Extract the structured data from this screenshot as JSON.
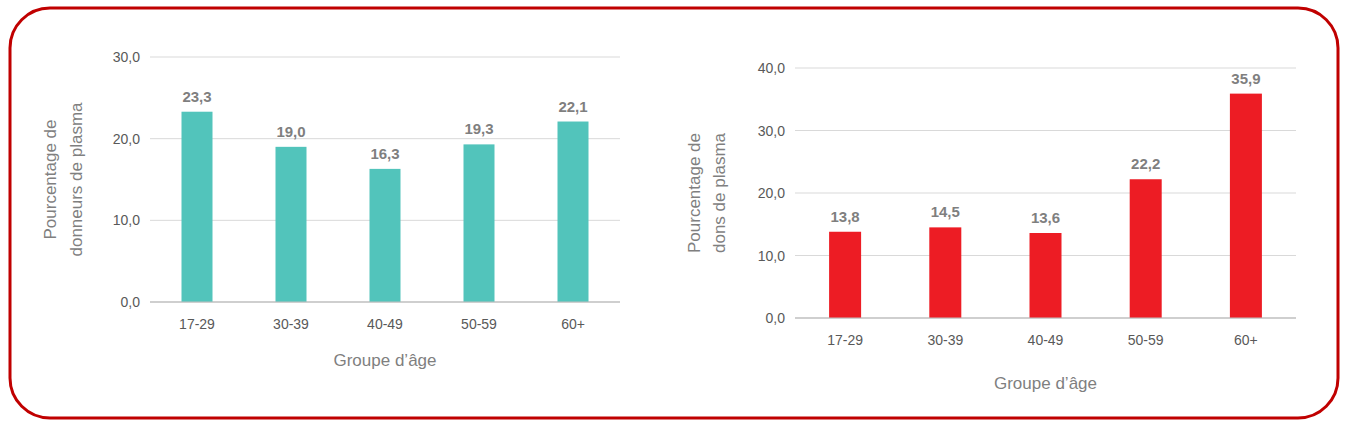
{
  "chart_data": [
    {
      "type": "bar",
      "categories": [
        "17-29",
        "30-39",
        "40-49",
        "50-59",
        "60+"
      ],
      "values": [
        23.3,
        19.0,
        16.3,
        19.3,
        22.1
      ],
      "value_labels": [
        "23,3",
        "19,0",
        "16,3",
        "19,3",
        "22,1"
      ],
      "color": "#52c4bb",
      "xlabel": "Groupe d’âge",
      "ylabel": [
        "Pourcentage de",
        "donneurs de plasma"
      ],
      "ylim": [
        0,
        30
      ],
      "yticks": [
        {
          "value": 0,
          "label": "0,0"
        },
        {
          "value": 10,
          "label": "10,0"
        },
        {
          "value": 20,
          "label": "20,0"
        },
        {
          "value": 30,
          "label": "30,0"
        }
      ],
      "grid": true,
      "data_labels": true
    },
    {
      "type": "bar",
      "categories": [
        "17-29",
        "30-39",
        "40-49",
        "50-59",
        "60+"
      ],
      "values": [
        13.8,
        14.5,
        13.6,
        22.2,
        35.9
      ],
      "value_labels": [
        "13,8",
        "14,5",
        "13,6",
        "22,2",
        "35,9"
      ],
      "color": "#ed1c24",
      "xlabel": "Groupe d’âge",
      "ylabel": [
        "Pourcentage de",
        "dons de plasma"
      ],
      "ylim": [
        0,
        40
      ],
      "yticks": [
        {
          "value": 0,
          "label": "0,0"
        },
        {
          "value": 10,
          "label": "10,0"
        },
        {
          "value": 20,
          "label": "20,0"
        },
        {
          "value": 30,
          "label": "30,0"
        },
        {
          "value": 40,
          "label": "40,0"
        }
      ],
      "grid": true,
      "data_labels": true
    }
  ]
}
